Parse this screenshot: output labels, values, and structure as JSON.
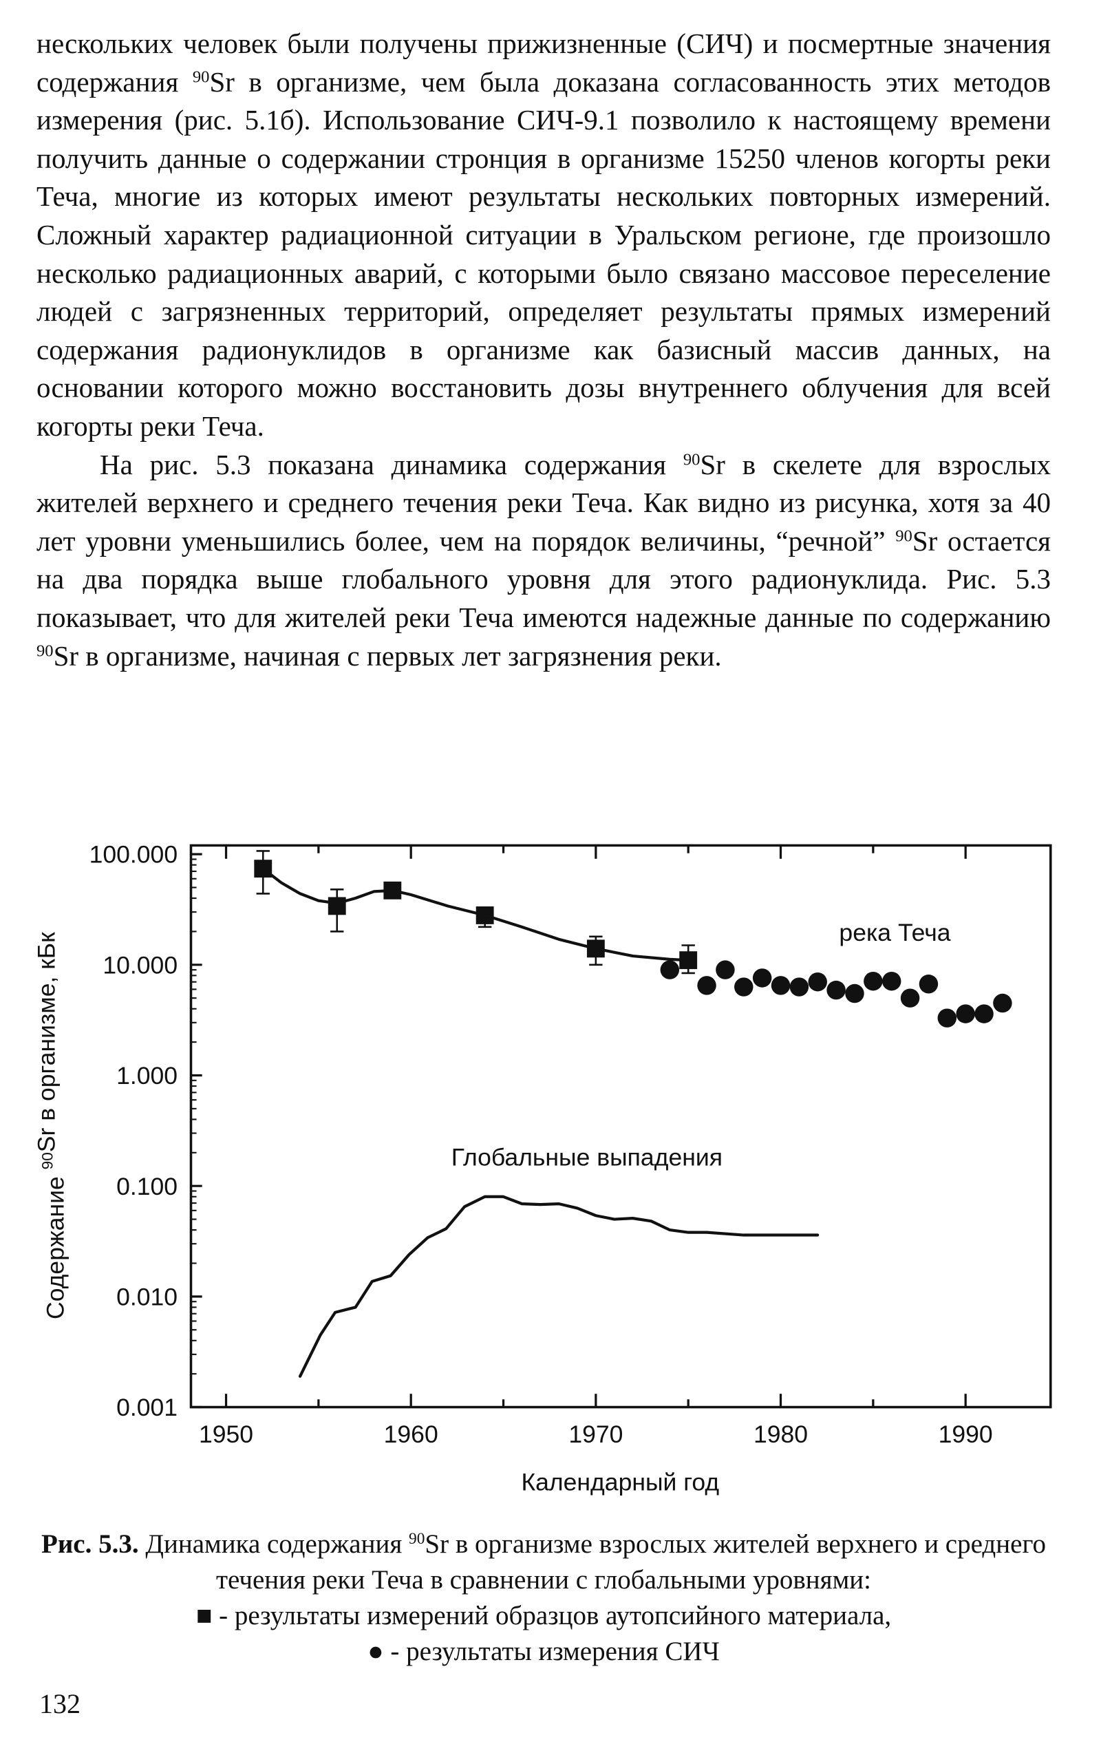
{
  "body": {
    "paragraphs": [
      {
        "indent": false,
        "segments": [
          "нескольких человек были получены прижизненные (СИЧ) и посмертные значения содержания ",
          {
            "sup": "90"
          },
          "Sr в организме, чем была доказана согласованность этих методов измерения (рис. 5.1б). Использование СИЧ-9.1 позволило к настоящему времени получить данные о содержании стронция в организме 15250 членов когорты реки Теча, многие из которых имеют результаты нескольких повторных измерений. Сложный характер радиационной ситуации в Уральском регионе, где произошло несколько радиационных аварий, с которыми было связано массовое переселение людей с загрязненных территорий, определяет результаты прямых измерений содержания радионуклидов в организме как базисный массив данных, на основании которого можно восстановить дозы внутреннего облучения для всей когорты реки Теча."
        ]
      },
      {
        "indent": true,
        "segments": [
          "На рис. 5.3 показана динамика содержания ",
          {
            "sup": "90"
          },
          "Sr в скелете для взрослых жителей верхнего и среднего течения реки Теча. Как видно из рисунка, хотя за 40 лет уровни уменьшились более, чем на порядок величины, “речной” ",
          {
            "sup": "90"
          },
          "Sr остается на два порядка выше глобального уровня для этого радионуклида. Рис. 5.3 показывает, что для жителей реки Теча имеются надежные данные по содержанию ",
          {
            "sup": "90"
          },
          "Sr в организме, начиная с первых лет загрязнения реки."
        ]
      }
    ]
  },
  "chart_data": {
    "type": "line",
    "ylabel": [
      "Содержание ",
      {
        "sup": "90"
      },
      "Sr в организме, кБк"
    ],
    "xlabel": "Календарный год",
    "xlim": [
      1948.1,
      1994.6
    ],
    "xticks": [
      1950,
      1960,
      1970,
      1980,
      1990
    ],
    "ylim": [
      0.001,
      120
    ],
    "yscale": "log",
    "yticks": [
      {
        "value": 0.001,
        "label": "0.001"
      },
      {
        "value": 0.01,
        "label": "0.010"
      },
      {
        "value": 0.1,
        "label": "0.100"
      },
      {
        "value": 1,
        "label": "1.000"
      },
      {
        "value": 10,
        "label": "10.000"
      },
      {
        "value": 100,
        "label": "100.000"
      }
    ],
    "annotations": [
      "река Теча",
      "Глобальные выпадения"
    ],
    "series": [
      {
        "type": "scatter",
        "marker": "square",
        "color": "#111111",
        "x": [
          1952,
          1956,
          1959,
          1964,
          1970,
          1975
        ],
        "values": [
          74,
          34,
          47,
          28,
          14,
          11
        ],
        "error_low": [
          44,
          20,
          43,
          22,
          10,
          8.4
        ],
        "error_high": [
          107,
          48,
          51,
          33,
          18,
          15
        ]
      },
      {
        "type": "scatter",
        "marker": "circle",
        "color": "#111111",
        "x": [
          1974,
          1976,
          1977,
          1978,
          1979,
          1980,
          1981,
          1982,
          1983,
          1984,
          1985,
          1986,
          1987,
          1988,
          1989,
          1990,
          1991,
          1992
        ],
        "values": [
          9.0,
          6.5,
          9.0,
          6.3,
          7.6,
          6.5,
          6.3,
          7.0,
          5.9,
          5.5,
          7.1,
          7.1,
          5.0,
          6.7,
          3.3,
          3.6,
          3.6,
          4.5
        ]
      },
      {
        "type": "line",
        "color": "#111111",
        "x": [
          1952,
          1953,
          1954,
          1955,
          1956,
          1957,
          1958,
          1959,
          1960,
          1962,
          1964,
          1966,
          1968,
          1970,
          1972,
          1974,
          1975
        ],
        "values": [
          74,
          55,
          44,
          38,
          36,
          40,
          46,
          47,
          43,
          34,
          28,
          22,
          17,
          14,
          12,
          11.2,
          11
        ]
      },
      {
        "type": "line",
        "color": "#111111",
        "x": [
          1954,
          1955.1,
          1955.9,
          1957,
          1957.9,
          1958.9,
          1959.9,
          1960.9,
          1961.9,
          1962.9,
          1964,
          1965,
          1966,
          1967,
          1968,
          1969,
          1970,
          1971,
          1972,
          1973,
          1974,
          1975,
          1976,
          1978,
          1980,
          1982
        ],
        "values": [
          0.0019,
          0.0045,
          0.0072,
          0.008,
          0.0137,
          0.0154,
          0.024,
          0.034,
          0.041,
          0.065,
          0.08,
          0.08,
          0.069,
          0.068,
          0.069,
          0.063,
          0.054,
          0.05,
          0.051,
          0.048,
          0.04,
          0.038,
          0.038,
          0.036,
          0.036,
          0.036
        ]
      }
    ]
  },
  "caption": {
    "label": "Рис. 5.3.",
    "segments": [
      " Динамика содержания ",
      {
        "sup": "90"
      },
      "Sr в организме взрослых жителей верхнего и среднего течения реки Теча в сравнении с глобальными уровнями:"
    ],
    "legend": [
      "■ - результаты измерений образцов аутопсийного материала,",
      "● - результаты измерения СИЧ"
    ]
  },
  "page_number": "132"
}
